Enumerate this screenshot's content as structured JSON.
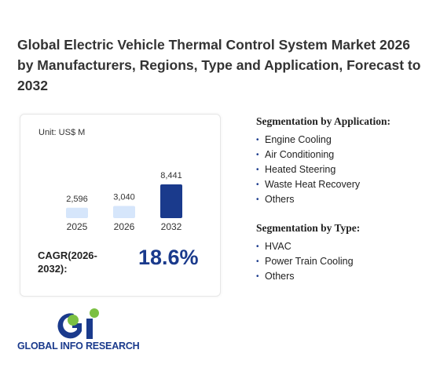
{
  "header": {
    "title": "Global Electric Vehicle Thermal Control System Market 2026 by Manufacturers, Regions, Type and Application, Forecast to 2032"
  },
  "card": {
    "unit": "Unit: US$ M",
    "chart": {
      "type": "bar",
      "categories": [
        "2025",
        "2026",
        "2032"
      ],
      "values": [
        2596,
        3040,
        8441
      ],
      "value_labels": [
        "2,596",
        "3,040",
        "8,441"
      ],
      "colors": [
        "#d6e6fb",
        "#d6e6fb",
        "#1a3a8c"
      ]
    },
    "cagr_label": "CAGR(2026-2032):",
    "cagr_value": "18.6%"
  },
  "segmentation_application": {
    "heading": "Segmentation by Application:",
    "items": [
      "Engine Cooling",
      "Air Conditioning",
      "Heated Steering",
      "Waste Heat Recovery",
      "Others"
    ]
  },
  "segmentation_type": {
    "heading": "Segmentation by Type:",
    "items": [
      "HVAC",
      "Power Train Cooling",
      "Others"
    ]
  },
  "logo": {
    "text": "GLOBAL INFO RESEARCH"
  }
}
